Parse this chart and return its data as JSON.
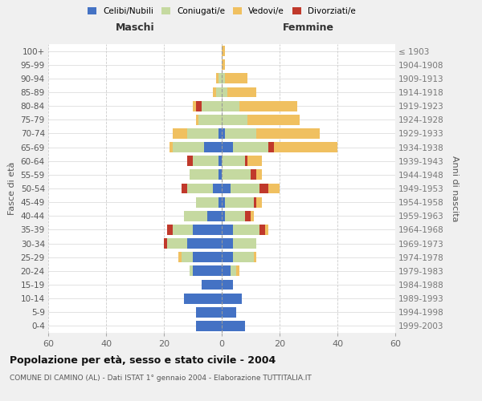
{
  "age_groups": [
    "0-4",
    "5-9",
    "10-14",
    "15-19",
    "20-24",
    "25-29",
    "30-34",
    "35-39",
    "40-44",
    "45-49",
    "50-54",
    "55-59",
    "60-64",
    "65-69",
    "70-74",
    "75-79",
    "80-84",
    "85-89",
    "90-94",
    "95-99",
    "100+"
  ],
  "birth_years": [
    "1999-2003",
    "1994-1998",
    "1989-1993",
    "1984-1988",
    "1979-1983",
    "1974-1978",
    "1969-1973",
    "1964-1968",
    "1959-1963",
    "1954-1958",
    "1949-1953",
    "1944-1948",
    "1939-1943",
    "1934-1938",
    "1929-1933",
    "1924-1928",
    "1919-1923",
    "1914-1918",
    "1909-1913",
    "1904-1908",
    "≤ 1903"
  ],
  "maschi": {
    "celibi": [
      9,
      9,
      13,
      7,
      10,
      10,
      12,
      10,
      5,
      1,
      3,
      1,
      1,
      6,
      1,
      0,
      0,
      0,
      0,
      0,
      0
    ],
    "coniugati": [
      0,
      0,
      0,
      0,
      1,
      4,
      7,
      7,
      8,
      8,
      9,
      10,
      9,
      11,
      11,
      8,
      7,
      2,
      1,
      0,
      0
    ],
    "vedovi": [
      0,
      0,
      0,
      0,
      0,
      1,
      0,
      0,
      0,
      0,
      0,
      0,
      0,
      1,
      5,
      1,
      1,
      1,
      1,
      0,
      0
    ],
    "divorziati": [
      0,
      0,
      0,
      0,
      0,
      0,
      1,
      2,
      0,
      0,
      2,
      0,
      2,
      0,
      0,
      0,
      2,
      0,
      0,
      0,
      0
    ]
  },
  "femmine": {
    "nubili": [
      8,
      5,
      7,
      4,
      3,
      4,
      4,
      4,
      1,
      1,
      3,
      0,
      0,
      4,
      1,
      0,
      0,
      0,
      0,
      0,
      0
    ],
    "coniugate": [
      0,
      0,
      0,
      0,
      2,
      7,
      8,
      9,
      7,
      10,
      10,
      10,
      8,
      12,
      11,
      9,
      6,
      2,
      1,
      0,
      0
    ],
    "vedove": [
      0,
      0,
      0,
      0,
      1,
      1,
      0,
      1,
      1,
      2,
      4,
      2,
      5,
      22,
      22,
      18,
      20,
      10,
      8,
      1,
      1
    ],
    "divorziate": [
      0,
      0,
      0,
      0,
      0,
      0,
      0,
      2,
      2,
      1,
      3,
      2,
      1,
      2,
      0,
      0,
      0,
      0,
      0,
      0,
      0
    ]
  },
  "colors": {
    "celibi_nubili": "#4472c4",
    "coniugati_e": "#c5d9a0",
    "vedovi_e": "#f0c060",
    "divorziati_e": "#c0392b"
  },
  "title": "Popolazione per età, sesso e stato civile - 2004",
  "subtitle": "COMUNE DI CAMINO (AL) - Dati ISTAT 1° gennaio 2004 - Elaborazione TUTTITALIA.IT",
  "xlabel_left": "Maschi",
  "xlabel_right": "Femmine",
  "ylabel_left": "Fasce di età",
  "ylabel_right": "Anni di nascita",
  "xlim": 60,
  "bg_color": "#f0f0f0",
  "plot_bg": "#ffffff",
  "grid_color": "#cccccc"
}
